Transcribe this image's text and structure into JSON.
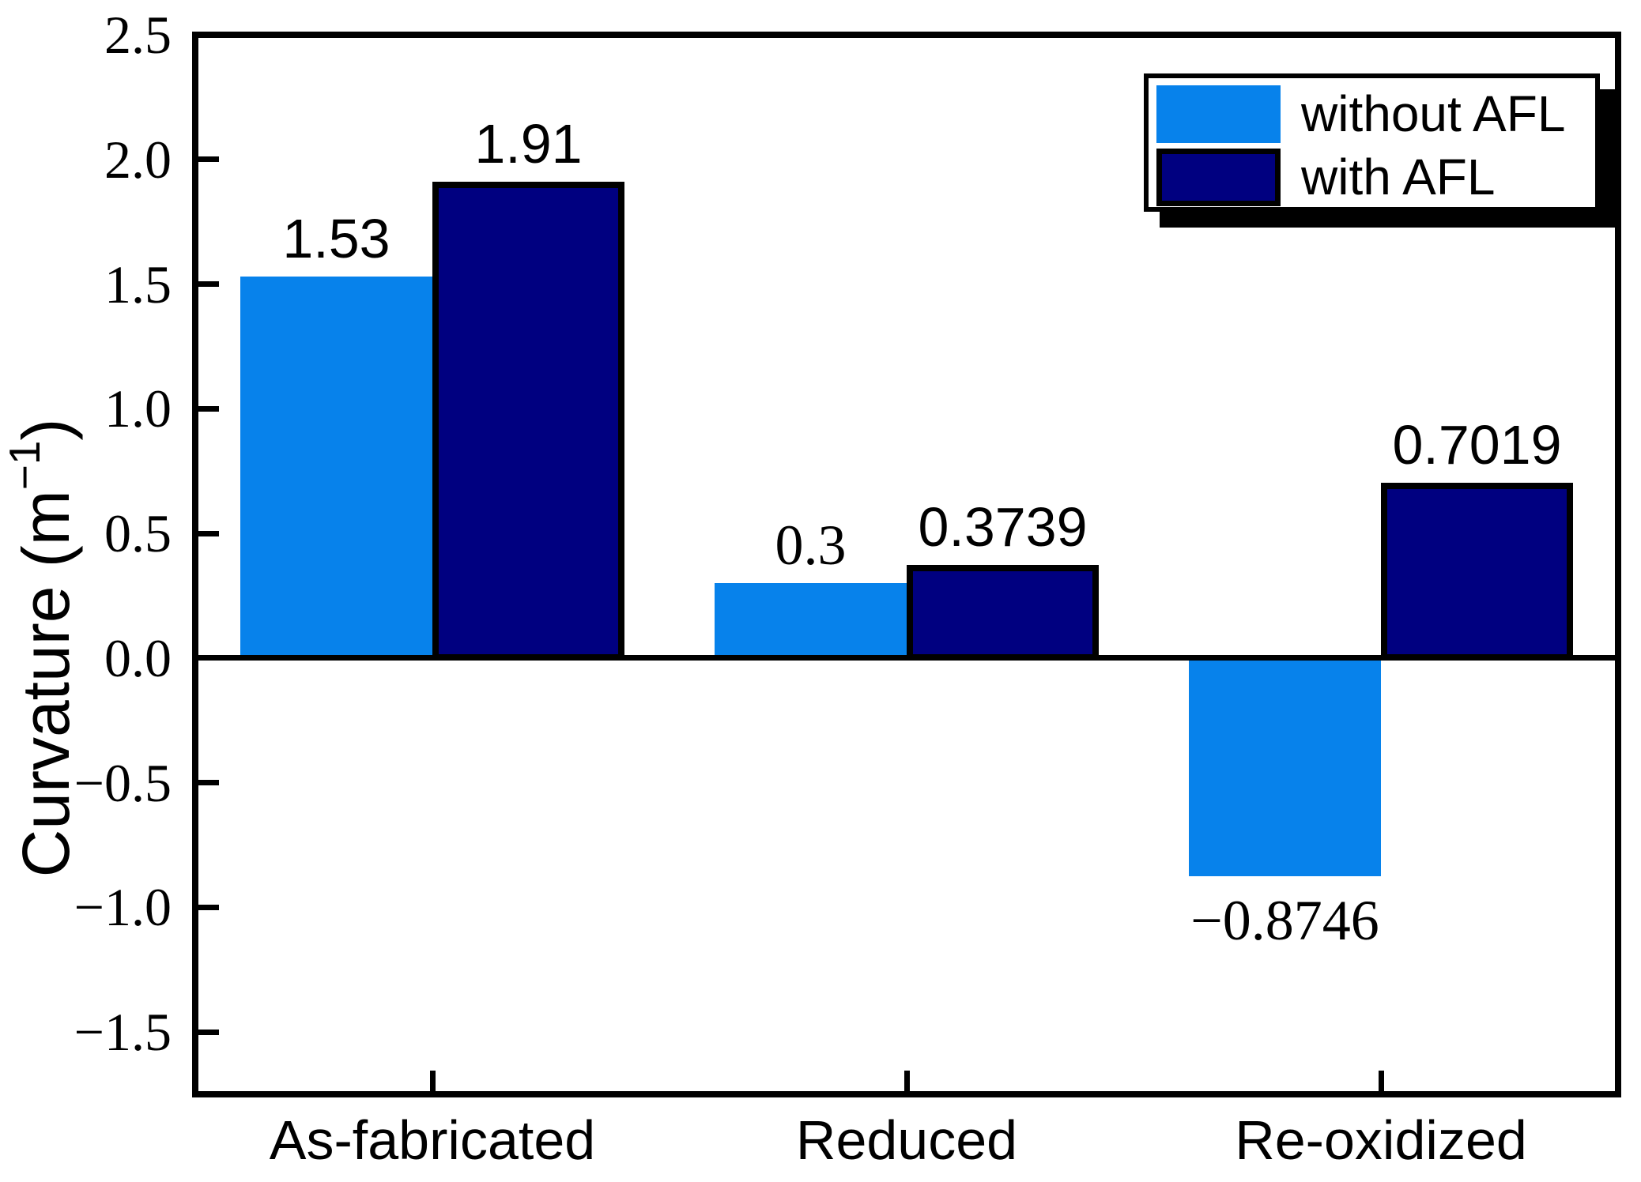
{
  "chart_data": {
    "type": "bar",
    "title": "",
    "categories": [
      "As-fabricated",
      "Reduced",
      "Re-oxidized"
    ],
    "series": [
      {
        "name": "without AFL",
        "color": "#0782EB",
        "values": [
          1.53,
          0.3,
          -0.8746
        ],
        "value_labels": [
          "1.53",
          "0.3",
          "−0.8746"
        ],
        "label_fonts": [
          "sans",
          "serif",
          "serif"
        ]
      },
      {
        "name": "with AFL",
        "color": "#000080",
        "values": [
          1.91,
          0.3739,
          0.7019
        ],
        "value_labels": [
          "1.91",
          "0.3739",
          "0.7019"
        ],
        "label_fonts": [
          "sans",
          "sans",
          "sans"
        ]
      }
    ],
    "xlabel": "",
    "ylabel": {
      "text": "Curvature (m⁻¹)",
      "prefix": "Curvature (m",
      "sup": "−1",
      "suffix": ")"
    },
    "ylim": [
      -1.75,
      2.5
    ],
    "yticks": [
      {
        "value": 2.5,
        "label": "2.5"
      },
      {
        "value": 2.0,
        "label": "2.0"
      },
      {
        "value": 1.5,
        "label": "1.5"
      },
      {
        "value": 1.0,
        "label": "1.0"
      },
      {
        "value": 0.5,
        "label": "0.5"
      },
      {
        "value": 0.0,
        "label": "0.0"
      },
      {
        "value": -0.5,
        "label": "−0.5"
      },
      {
        "value": -1.0,
        "label": "−1.0"
      },
      {
        "value": -1.5,
        "label": "−1.5"
      }
    ],
    "legend": {
      "position": "top-right",
      "shadow": true
    },
    "grid": false,
    "zero_line": true,
    "axis_color": "#000000",
    "background": "#FFFFFF"
  }
}
